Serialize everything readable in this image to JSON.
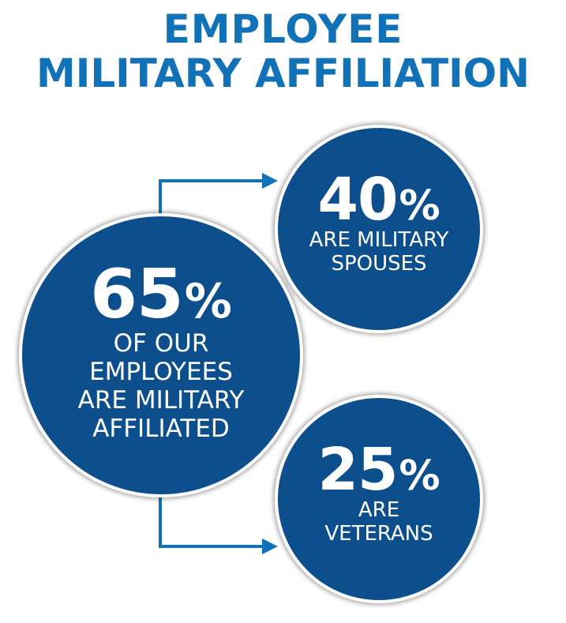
{
  "title": {
    "line1": "EMPLOYEE",
    "line2": "MILITARY AFFILIATION"
  },
  "colors": {
    "title": "#1272b8",
    "circle_fill": "#0d4f8c",
    "circle_text": "#ffffff",
    "arrow": "#1272b8"
  },
  "main_stat": {
    "number": "65",
    "percent_sign": "%",
    "label_lines": [
      "OF OUR",
      "EMPLOYEES",
      "ARE MILITARY",
      "AFFILIATED"
    ]
  },
  "spouses_stat": {
    "number": "40",
    "percent_sign": "%",
    "label_lines": [
      "ARE MILITARY",
      "SPOUSES"
    ]
  },
  "veterans_stat": {
    "number": "25",
    "percent_sign": "%",
    "label_lines": [
      "ARE",
      "VETERANS"
    ]
  }
}
